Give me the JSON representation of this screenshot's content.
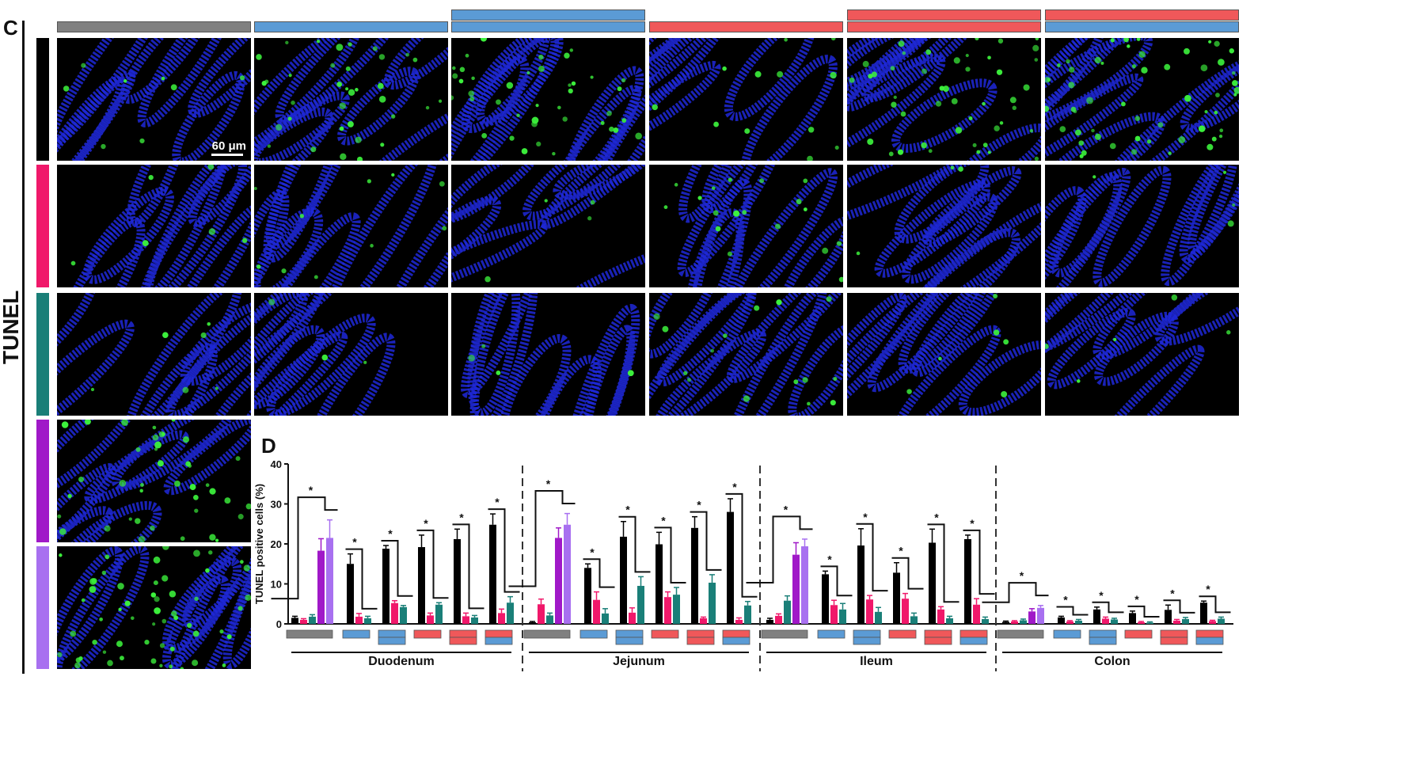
{
  "panel_c": {
    "letter": "C",
    "side_label": "TUNEL",
    "scale_bar": "60 μm",
    "column_headers": [
      {
        "top": null,
        "bottom": "#808080"
      },
      {
        "top": null,
        "bottom": "#5b9bd5"
      },
      {
        "top": "#5b9bd5",
        "bottom": "#5b9bd5"
      },
      {
        "top": null,
        "bottom": "#f0585a"
      },
      {
        "top": "#f0585a",
        "bottom": "#f0585a"
      },
      {
        "top": "#f0585a",
        "bottom": "#5b9bd5"
      }
    ],
    "row_colors": [
      "#000000",
      "#f0186a",
      "#1a7f78",
      "#a019c8",
      "#a870f0"
    ],
    "tile_colors": {
      "background": "#000000",
      "nuclei": "#1e28d8",
      "apoptotic": "#3cf23c"
    }
  },
  "panel_d": {
    "letter": "D"
  },
  "chart_data": {
    "type": "bar",
    "ylabel": "TUNEL positive cells (%)",
    "ylim": [
      0,
      40
    ],
    "yticks": [
      "0",
      "10",
      "20",
      "30",
      "40"
    ],
    "series_colors": [
      "#000000",
      "#f0186a",
      "#1a7f78",
      "#a019c8",
      "#a870f0"
    ],
    "significance_mark": "*",
    "segments": [
      {
        "name": "Duodenum",
        "groups": [
          {
            "values": [
              1.5,
              1.0,
              1.8,
              18.3,
              21.5
            ],
            "errors": [
              0.4,
              0.3,
              0.5,
              3.0,
              4.5
            ]
          },
          {
            "values": [
              15.0,
              1.8,
              1.4
            ],
            "errors": [
              2.5,
              0.8,
              0.5
            ]
          },
          {
            "values": [
              18.8,
              5.2,
              4.2
            ],
            "errors": [
              0.8,
              0.6,
              0.4
            ]
          },
          {
            "values": [
              19.2,
              2.1,
              4.8
            ],
            "errors": [
              3.0,
              0.6,
              0.5
            ]
          },
          {
            "values": [
              21.2,
              1.9,
              1.6
            ],
            "errors": [
              2.5,
              0.8,
              0.5
            ]
          },
          {
            "values": [
              24.8,
              2.7,
              5.3
            ],
            "errors": [
              2.7,
              1.0,
              1.5
            ]
          }
        ]
      },
      {
        "name": "Jejunum",
        "groups": [
          {
            "values": [
              0.4,
              4.9,
              2.1,
              21.5,
              24.8
            ],
            "errors": [
              0.2,
              1.3,
              0.6,
              2.5,
              2.8
            ]
          },
          {
            "values": [
              14.0,
              6.0,
              2.6
            ],
            "errors": [
              1.0,
              2.0,
              1.2
            ]
          },
          {
            "values": [
              21.8,
              2.8,
              9.5
            ],
            "errors": [
              3.8,
              1.2,
              2.3
            ]
          },
          {
            "values": [
              19.9,
              6.7,
              7.3
            ],
            "errors": [
              3.0,
              1.3,
              1.8
            ]
          },
          {
            "values": [
              24.0,
              1.4,
              10.3
            ],
            "errors": [
              2.8,
              0.3,
              2.0
            ]
          },
          {
            "values": [
              28.0,
              1.0,
              4.6
            ],
            "errors": [
              3.3,
              0.5,
              1.0
            ]
          }
        ]
      },
      {
        "name": "Ileum",
        "groups": [
          {
            "values": [
              1.0,
              2.0,
              5.8,
              17.3,
              19.4
            ],
            "errors": [
              0.4,
              0.5,
              1.2,
              3.0,
              1.8
            ]
          },
          {
            "values": [
              12.4,
              4.7,
              3.6
            ],
            "errors": [
              0.8,
              1.2,
              1.5
            ]
          },
          {
            "values": [
              19.6,
              6.1,
              3.0
            ],
            "errors": [
              4.2,
              1.0,
              1.1
            ]
          },
          {
            "values": [
              12.8,
              6.3,
              1.9
            ],
            "errors": [
              2.5,
              1.3,
              0.8
            ]
          },
          {
            "values": [
              20.3,
              3.6,
              1.4
            ],
            "errors": [
              3.4,
              0.7,
              0.5
            ]
          },
          {
            "values": [
              21.2,
              4.8,
              1.2
            ],
            "errors": [
              1.0,
              1.5,
              0.5
            ]
          }
        ]
      },
      {
        "name": "Colon",
        "groups": [
          {
            "values": [
              0.5,
              0.6,
              0.9,
              3.1,
              4.0
            ],
            "errors": [
              0.2,
              0.2,
              0.3,
              0.7,
              0.6
            ]
          },
          {
            "values": [
              1.6,
              0.6,
              0.8
            ],
            "errors": [
              0.3,
              0.2,
              0.3
            ]
          },
          {
            "values": [
              3.6,
              1.3,
              1.1
            ],
            "errors": [
              0.6,
              0.4,
              0.3
            ]
          },
          {
            "values": [
              2.7,
              0.4,
              0.3
            ],
            "errors": [
              0.5,
              0.2,
              0.2
            ]
          },
          {
            "values": [
              3.5,
              0.8,
              1.2
            ],
            "errors": [
              1.2,
              0.3,
              0.4
            ]
          },
          {
            "values": [
              5.3,
              0.7,
              1.3
            ],
            "errors": [
              0.4,
              0.2,
              0.4
            ]
          }
        ]
      }
    ]
  }
}
